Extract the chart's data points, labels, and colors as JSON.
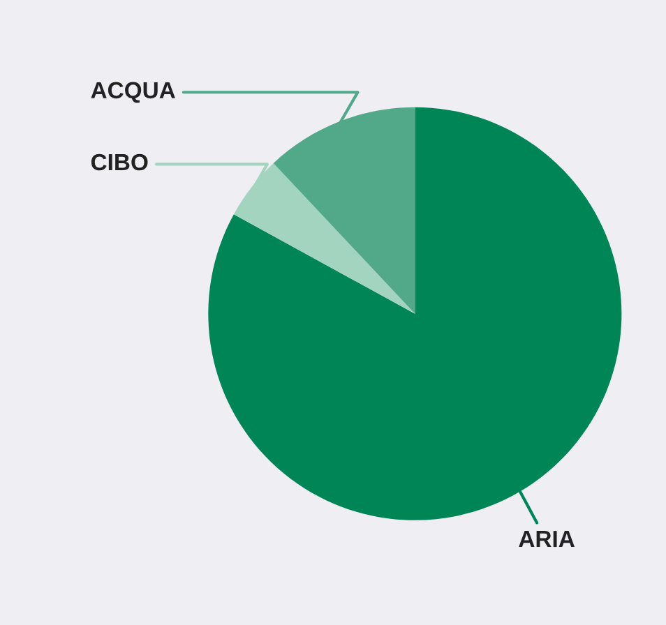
{
  "chart_data": {
    "type": "pie",
    "categories": [
      "ARIA",
      "CIBO",
      "ACQUA"
    ],
    "values": [
      83,
      5,
      12
    ],
    "colors": [
      "#008557",
      "#a3d4c0",
      "#52a98a"
    ]
  }
}
